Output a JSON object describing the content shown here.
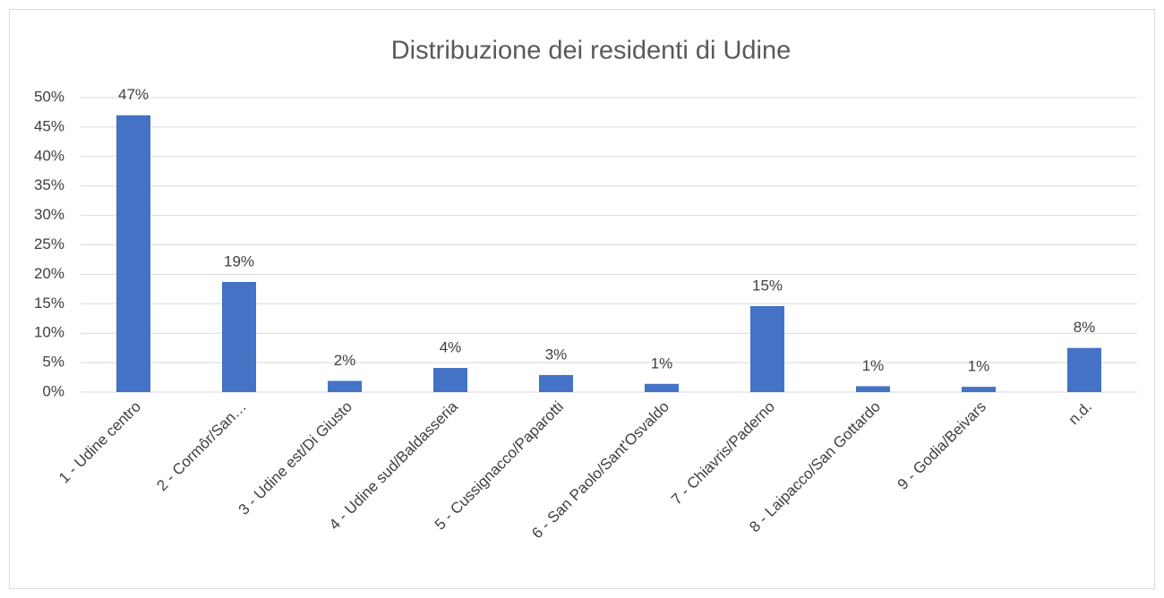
{
  "chart_data": {
    "type": "bar",
    "title": "Distribuzione dei residenti  di Udine",
    "categories": [
      "1 - Udine centro",
      "2 - Cormôr/San…",
      "3 - Udine est/Di Giusto",
      "4 - Udine sud/Baldasseria",
      "5 - Cussignacco/Paparotti",
      "6 - San Paolo/Sant'Osvaldo",
      "7 - Chiavris/Paderno",
      "8 - Laipacco/San Gottardo",
      "9 - Godia/Beivars",
      "n.d."
    ],
    "values": [
      47,
      18.7,
      1.9,
      4.1,
      2.9,
      1.4,
      14.6,
      1.0,
      0.9,
      7.5
    ],
    "value_labels": [
      "47%",
      "19%",
      "2%",
      "4%",
      "3%",
      "1%",
      "15%",
      "1%",
      "1%",
      "8%"
    ],
    "color": "#4472c4",
    "ylim": [
      0,
      50
    ],
    "yticks": [
      {
        "value": 0,
        "label": "0%"
      },
      {
        "value": 5,
        "label": "5%"
      },
      {
        "value": 10,
        "label": "10%"
      },
      {
        "value": 15,
        "label": "15%"
      },
      {
        "value": 20,
        "label": "20%"
      },
      {
        "value": 25,
        "label": "25%"
      },
      {
        "value": 30,
        "label": "30%"
      },
      {
        "value": 35,
        "label": "35%"
      },
      {
        "value": 40,
        "label": "40%"
      },
      {
        "value": 45,
        "label": "45%"
      },
      {
        "value": 50,
        "label": "50%"
      }
    ],
    "grid": true
  }
}
